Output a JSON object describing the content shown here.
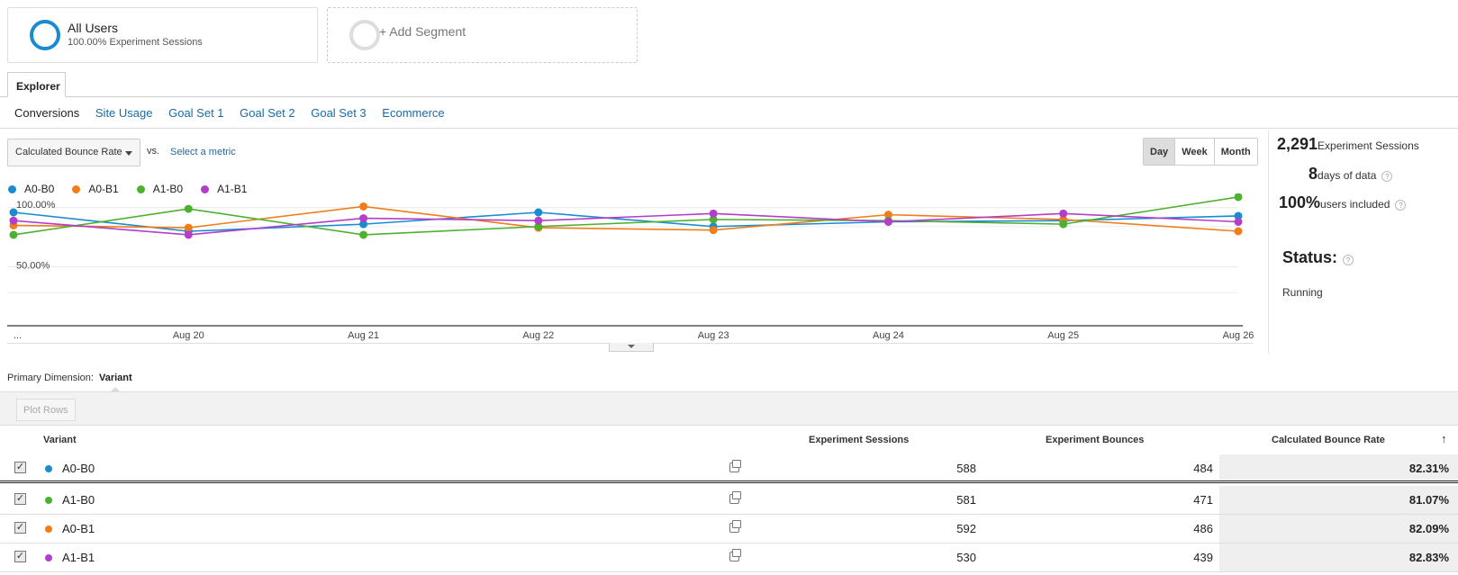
{
  "segments": {
    "all_users": {
      "title": "All Users",
      "subtitle": "100.00% Experiment Sessions"
    },
    "add_label": "+ Add Segment"
  },
  "tab": "Explorer",
  "subtabs": [
    "Conversions",
    "Site Usage",
    "Goal Set 1",
    "Goal Set 2",
    "Goal Set 3",
    "Ecommerce"
  ],
  "metric": {
    "primary": "Calculated Bounce Rate",
    "vs": "vs.",
    "select": "Select a metric"
  },
  "range": [
    "Day",
    "Week",
    "Month"
  ],
  "stats": {
    "sessions_value": "2,291",
    "sessions_label": "Experiment Sessions",
    "days_value": "8",
    "days_label": "days of data",
    "users_value": "100%",
    "users_label": "users included",
    "status_label": "Status:",
    "status_value": "Running"
  },
  "colors": {
    "A0-B0": "#1a8bd0",
    "A0-B1": "#f07d1a",
    "A1-B0": "#4cb131",
    "A1-B1": "#b23ec9"
  },
  "chart_data": {
    "type": "line",
    "x": [
      "...",
      "Aug 20",
      "Aug 21",
      "Aug 22",
      "Aug 23",
      "Aug 24",
      "Aug 25",
      "Aug 26"
    ],
    "y_tick_labels": [
      "100.00%",
      "50.00%"
    ],
    "y_ticks": [
      100,
      50
    ],
    "ylim": [
      0,
      112
    ],
    "series": [
      {
        "name": "A0-B0",
        "color": "#1a8bd0",
        "values": [
          96,
          80,
          86,
          96,
          84,
          88,
          89,
          93
        ]
      },
      {
        "name": "A0-B1",
        "color": "#f07d1a",
        "values": [
          85,
          83,
          101,
          83,
          81,
          94,
          90,
          80
        ]
      },
      {
        "name": "A1-B0",
        "color": "#4cb131",
        "values": [
          77,
          99,
          77,
          84,
          90,
          89,
          86,
          109
        ]
      },
      {
        "name": "A1-B1",
        "color": "#b23ec9",
        "values": [
          89,
          77,
          91,
          89,
          95,
          88,
          95,
          88
        ]
      }
    ]
  },
  "primary_dimension": {
    "label": "Primary Dimension:",
    "value": "Variant"
  },
  "plot_rows": "Plot Rows",
  "table": {
    "headers": [
      "Variant",
      "Experiment Sessions",
      "Experiment Bounces",
      "Calculated Bounce Rate"
    ],
    "rows": [
      {
        "variant": "A0-B0",
        "color": "#1a8bd0",
        "sessions": "588",
        "bounces": "484",
        "rate": "82.31%"
      },
      {
        "variant": "A1-B0",
        "color": "#4cb131",
        "sessions": "581",
        "bounces": "471",
        "rate": "81.07%"
      },
      {
        "variant": "A0-B1",
        "color": "#f07d1a",
        "sessions": "592",
        "bounces": "486",
        "rate": "82.09%"
      },
      {
        "variant": "A1-B1",
        "color": "#b23ec9",
        "sessions": "530",
        "bounces": "439",
        "rate": "82.83%"
      }
    ]
  }
}
